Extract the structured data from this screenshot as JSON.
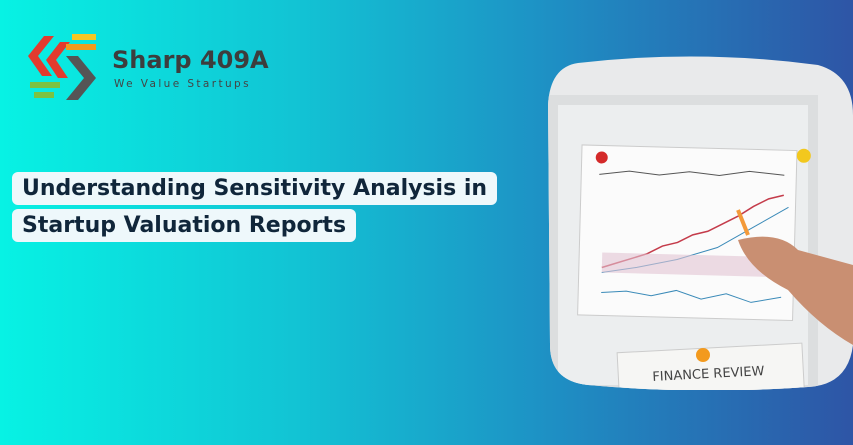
{
  "logo": {
    "name": "Sharp 409A",
    "tagline": "We Value Startups"
  },
  "headline": {
    "lines": [
      "Understanding Sensitivity Analysis in",
      "Startup Valuation Reports"
    ]
  },
  "photo": {
    "caption": "FINANCE REVIEW"
  }
}
